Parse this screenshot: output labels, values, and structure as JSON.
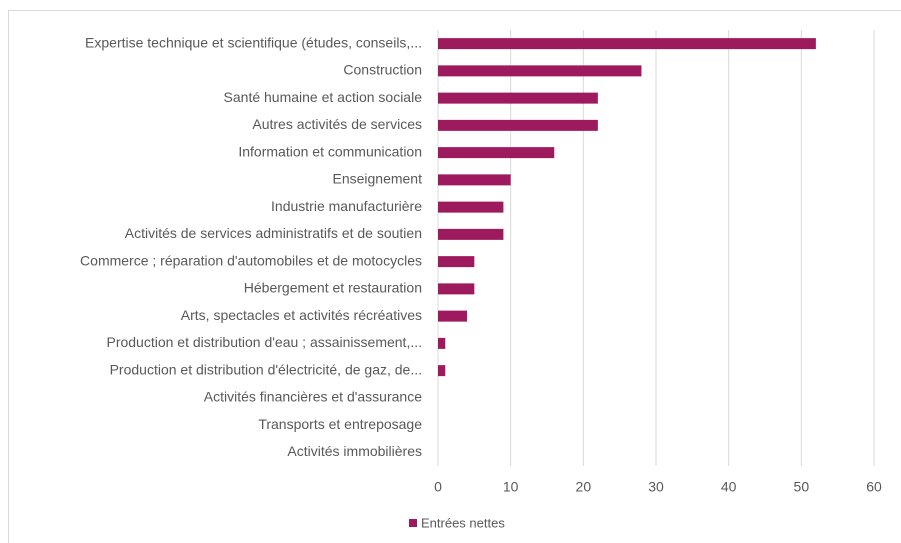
{
  "chart_data": {
    "type": "barh",
    "categories": [
      "Expertise technique et scientifique (études, conseils,...",
      "Construction",
      "Santé humaine et action sociale",
      "Autres activités de services",
      "Information et communication",
      "Enseignement",
      "Industrie manufacturière",
      "Activités de services administratifs et de soutien",
      "Commerce ; réparation d'automobiles et de motocycles",
      "Hébergement et restauration",
      "Arts, spectacles et activités récréatives",
      "Production et distribution d'eau ; assainissement,...",
      "Production et distribution d'électricité, de gaz, de...",
      "Activités financières et d'assurance",
      "Transports et entreposage",
      "Activités immobilières"
    ],
    "series": [
      {
        "name": "Entrées nettes",
        "color": "#9e1a5e",
        "values": [
          52,
          28,
          22,
          22,
          16,
          10,
          9,
          9,
          5,
          5,
          4,
          1,
          1,
          0,
          0,
          0
        ]
      }
    ],
    "xlim": [
      0,
      60
    ],
    "xticks": [
      0,
      10,
      20,
      30,
      40,
      50,
      60
    ],
    "grid": true,
    "legend": "bottom"
  }
}
